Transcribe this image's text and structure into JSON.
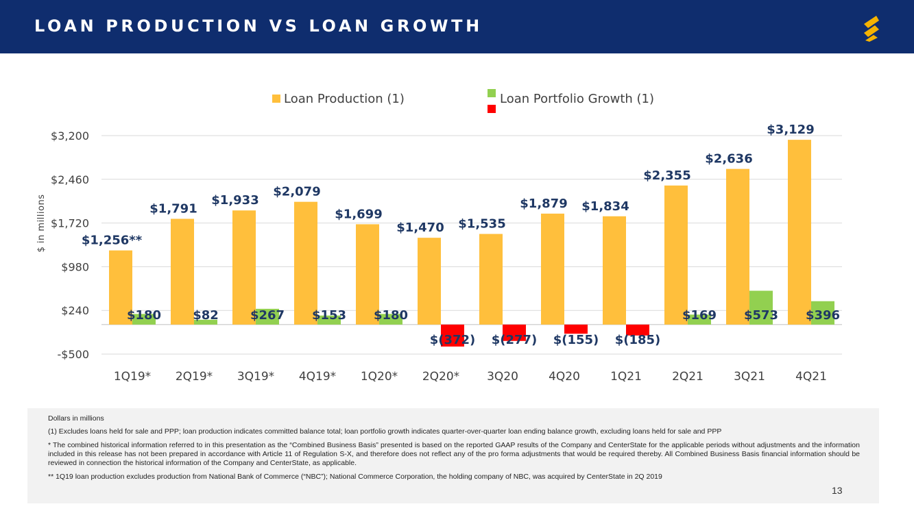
{
  "header": {
    "title": "LOAN PRODUCTION VS LOAN GROWTH",
    "logo_icon": "company-s-logo-icon",
    "bg_color": "#0f2d6e",
    "logo_color": "#f5b301"
  },
  "chart_data": {
    "type": "bar",
    "ylabel": "$ in millions",
    "xlabel": "",
    "ylim": [
      -500,
      3200
    ],
    "yticks": [
      -500,
      240,
      980,
      1720,
      2460,
      3200
    ],
    "ytick_labels": [
      "-$500",
      "$240",
      "$980",
      "$1,720",
      "$2,460",
      "$3,200"
    ],
    "grid": true,
    "legend_position": "top-center",
    "categories": [
      "1Q19*",
      "2Q19*",
      "3Q19*",
      "4Q19*",
      "1Q20*",
      "2Q20*",
      "3Q20",
      "4Q20",
      "1Q21",
      "2Q21",
      "3Q21",
      "4Q21"
    ],
    "series": [
      {
        "name": "Loan Production (1)",
        "color": "#ffbf3c",
        "values": [
          1256,
          1791,
          1933,
          2079,
          1699,
          1470,
          1535,
          1879,
          1834,
          2355,
          2636,
          3129
        ],
        "labels": [
          "$1,256**",
          "$1,791",
          "$1,933",
          "$2,079",
          "$1,699",
          "$1,470",
          "$1,535",
          "$1,879",
          "$1,834",
          "$2,355",
          "$2,636",
          "$3,129"
        ]
      },
      {
        "name": "Loan Portfolio Growth (1)",
        "color": "#92d050",
        "negative_color": "#ff0000",
        "values": [
          180,
          82,
          267,
          153,
          180,
          -372,
          -277,
          -155,
          -185,
          169,
          573,
          396
        ],
        "labels": [
          "$180",
          "$82",
          "$267",
          "$153",
          "$180",
          "$(372)",
          "$(277)",
          "$(155)",
          "$(185)",
          "$169",
          "$573",
          "$396"
        ]
      }
    ],
    "label_color": "#1f3864"
  },
  "footnotes": {
    "units": "Dollars in millions",
    "note1": "(1) Excludes loans held for sale and PPP; loan production indicates committed balance total; loan portfolio growth indicates quarter-over-quarter loan ending balance growth, excluding loans held for sale and PPP",
    "note_star": "*      The combined historical information referred to in this presentation as the “Combined Business Basis” presented is based on the reported GAAP results of the Company and CenterState for the applicable periods without adjustments and the information included in this release has not been prepared in accordance with Article 11 of Regulation S-X, and therefore does not reflect any of the pro forma adjustments that would be required thereby.  All Combined Business Basis financial information should be reviewed in connection the historical information of the Company and CenterState, as applicable.",
    "note_double_star": "**      1Q19 loan production excludes production from National Bank of Commerce (“NBC”);  National Commerce Corporation, the holding company of NBC, was acquired by CenterState in 2Q 2019"
  },
  "page_number": "13"
}
